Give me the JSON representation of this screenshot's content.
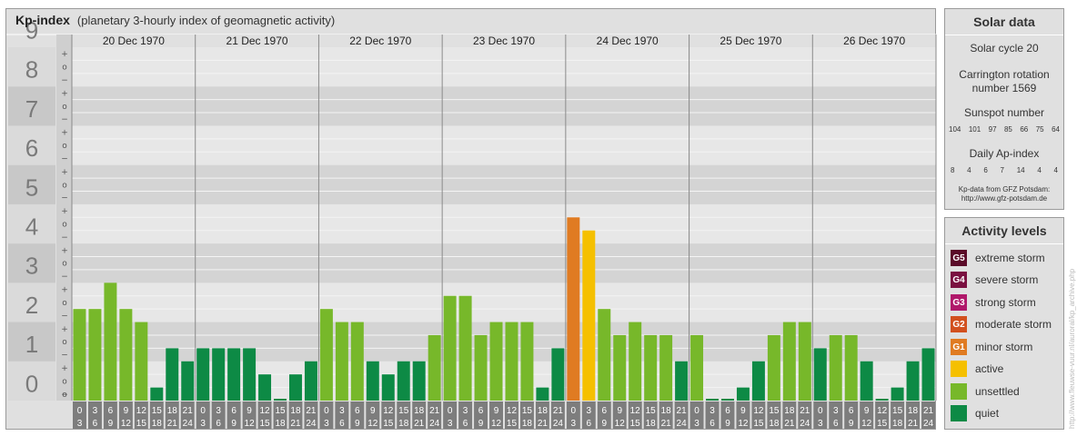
{
  "header": {
    "title": "Kp-index",
    "subtitle": "(planetary 3-hourly index of geomagnetic activity)"
  },
  "chart_data": {
    "type": "bar",
    "title": "Kp-index",
    "subtitle": "(planetary 3-hourly index of geomagnetic activity)",
    "ylim": [
      0,
      9
    ],
    "y_tick_labels": [
      "0",
      "1",
      "2",
      "3",
      "4",
      "5",
      "6",
      "7",
      "8",
      "9"
    ],
    "y_minor_labels": [
      "+",
      "o",
      "−"
    ],
    "days": [
      "20 Dec 1970",
      "21 Dec 1970",
      "22 Dec 1970",
      "23 Dec 1970",
      "24 Dec 1970",
      "25 Dec 1970",
      "26 Dec 1970"
    ],
    "interval_labels": [
      [
        "0",
        "3"
      ],
      [
        "3",
        "6"
      ],
      [
        "6",
        "9"
      ],
      [
        "9",
        "12"
      ],
      [
        "12",
        "15"
      ],
      [
        "15",
        "18"
      ],
      [
        "18",
        "21"
      ],
      [
        "21",
        "24"
      ]
    ],
    "series": [
      {
        "values": [
          2.333,
          2.333,
          3.0,
          2.333,
          2.0,
          0.333,
          1.333,
          1.0,
          1.333,
          1.333,
          1.333,
          1.333,
          0.667,
          0.0,
          0.667,
          1.0,
          2.333,
          2.0,
          2.0,
          1.0,
          0.667,
          1.0,
          1.0,
          1.667,
          2.667,
          2.667,
          1.667,
          2.0,
          2.0,
          2.0,
          0.333,
          1.333,
          4.667,
          4.333,
          2.333,
          1.667,
          2.0,
          1.667,
          1.667,
          1.0,
          1.667,
          0.0,
          0.0,
          0.333,
          1.0,
          1.667,
          2.0,
          2.0,
          1.333,
          1.667,
          1.667,
          1.0,
          0.0,
          0.333,
          1.0,
          1.333
        ]
      }
    ],
    "level_colors": {
      "quiet": "#0d8a45",
      "unsettled": "#77b82a",
      "active": "#f5c000",
      "minor": "#e07b22"
    },
    "grid": true,
    "legend": "right panel"
  },
  "solar": {
    "title": "Solar data",
    "cycle": "Solar cycle 20",
    "carrington_1": "Carrington rotation",
    "carrington_2": "number 1569",
    "sunspot_title": "Sunspot number",
    "sunspot_values": [
      "104",
      "101",
      "97",
      "85",
      "66",
      "75",
      "64"
    ],
    "ap_title": "Daily Ap-index",
    "ap_values": [
      "8",
      "4",
      "6",
      "7",
      "14",
      "4",
      "4"
    ],
    "source_1": "Kp-data from GFZ Potsdam:",
    "source_2": "http://www.gfz-potsdam.de"
  },
  "activity": {
    "title": "Activity levels",
    "items": [
      {
        "badge": "G5",
        "label": "extreme storm",
        "color": "#5a0a28"
      },
      {
        "badge": "G4",
        "label": "severe storm",
        "color": "#7a1040"
      },
      {
        "badge": "G3",
        "label": "strong storm",
        "color": "#b0186a"
      },
      {
        "badge": "G2",
        "label": "moderate storm",
        "color": "#d2501e"
      },
      {
        "badge": "G1",
        "label": "minor storm",
        "color": "#e07b22"
      },
      {
        "badge": "",
        "label": "active",
        "color": "#f5c000"
      },
      {
        "badge": "",
        "label": "unsettled",
        "color": "#77b82a"
      },
      {
        "badge": "",
        "label": "quiet",
        "color": "#0d8a45"
      }
    ]
  },
  "watermark": "http://www.fleuwse-vuur.nl/auroral/kp_archive.php"
}
